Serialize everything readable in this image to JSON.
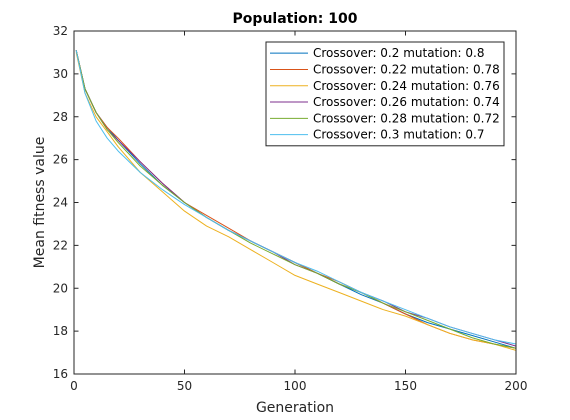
{
  "chart_data": {
    "type": "line",
    "title": "Population: 100",
    "xlabel": "Generation",
    "ylabel": "Mean fitness value",
    "xlim": [
      0,
      200
    ],
    "ylim": [
      16,
      32
    ],
    "xticks": [
      0,
      50,
      100,
      150,
      200
    ],
    "yticks": [
      16,
      18,
      20,
      22,
      24,
      26,
      28,
      30,
      32
    ],
    "grid": false,
    "legend_position": "top-right",
    "x": [
      1,
      5,
      10,
      15,
      20,
      30,
      40,
      50,
      60,
      70,
      80,
      90,
      100,
      110,
      120,
      130,
      140,
      150,
      160,
      170,
      180,
      190,
      200
    ],
    "series": [
      {
        "name": "Crossover: 0.2 mutation: 0.8",
        "color": "#0072BD",
        "values": [
          31.1,
          29.3,
          28.2,
          27.5,
          26.9,
          25.8,
          24.8,
          24.0,
          23.3,
          22.7,
          22.2,
          21.7,
          21.2,
          20.7,
          20.2,
          19.7,
          19.3,
          18.8,
          18.4,
          18.1,
          17.8,
          17.5,
          17.2
        ]
      },
      {
        "name": "Crossover: 0.22 mutation: 0.78",
        "color": "#D95319",
        "values": [
          31.1,
          29.3,
          28.2,
          27.5,
          27.0,
          25.9,
          24.9,
          24.0,
          23.4,
          22.8,
          22.2,
          21.7,
          21.2,
          20.7,
          20.3,
          19.8,
          19.3,
          18.8,
          18.3,
          17.9,
          17.6,
          17.4,
          17.2
        ]
      },
      {
        "name": "Crossover: 0.24 mutation: 0.76",
        "color": "#EDB120",
        "values": [
          31.0,
          29.1,
          28.0,
          27.3,
          26.6,
          25.4,
          24.5,
          23.6,
          22.9,
          22.4,
          21.8,
          21.2,
          20.6,
          20.2,
          19.8,
          19.4,
          19.0,
          18.7,
          18.3,
          17.9,
          17.6,
          17.4,
          17.1
        ]
      },
      {
        "name": "Crossover: 0.26 mutation: 0.74",
        "color": "#7E2F8E",
        "values": [
          31.1,
          29.3,
          28.2,
          27.4,
          26.9,
          25.9,
          24.9,
          24.0,
          23.3,
          22.7,
          22.2,
          21.7,
          21.1,
          20.7,
          20.2,
          19.8,
          19.4,
          18.9,
          18.6,
          18.2,
          17.9,
          17.6,
          17.3
        ]
      },
      {
        "name": "Crossover: 0.28 mutation: 0.72",
        "color": "#77AC30",
        "values": [
          31.1,
          29.3,
          28.2,
          27.4,
          26.8,
          25.7,
          24.8,
          24.0,
          23.3,
          22.7,
          22.1,
          21.6,
          21.1,
          20.7,
          20.2,
          19.8,
          19.3,
          18.9,
          18.5,
          18.1,
          17.7,
          17.4,
          17.2
        ]
      },
      {
        "name": "Crossover: 0.3 mutation: 0.7",
        "color": "#4DBEEE",
        "values": [
          31.1,
          29.1,
          27.8,
          27.0,
          26.4,
          25.4,
          24.6,
          23.9,
          23.3,
          22.7,
          22.2,
          21.7,
          21.2,
          20.8,
          20.3,
          19.8,
          19.4,
          19.0,
          18.6,
          18.2,
          17.9,
          17.6,
          17.4
        ]
      }
    ]
  }
}
